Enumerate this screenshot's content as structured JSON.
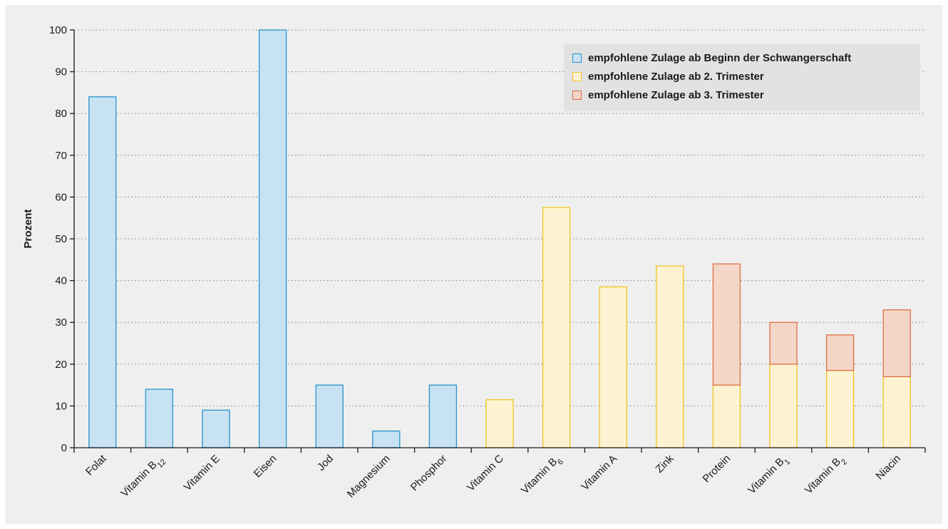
{
  "chart_data": {
    "type": "bar",
    "stacked": true,
    "ylabel": "Prozent",
    "xlabel": "",
    "ylim": [
      0,
      100
    ],
    "yticks": [
      0,
      10,
      20,
      30,
      40,
      50,
      60,
      70,
      80,
      90,
      100
    ],
    "grid": "horizontal dotted",
    "legend_position": "top-right",
    "categories": [
      {
        "label": "Folat"
      },
      {
        "label": "Vitamin B",
        "sub": "12"
      },
      {
        "label": "Vitamin E"
      },
      {
        "label": "Eisen"
      },
      {
        "label": "Jod"
      },
      {
        "label": "Magnesium"
      },
      {
        "label": "Phosphor"
      },
      {
        "label": "Vitamin C"
      },
      {
        "label": "Vitamin B",
        "sub": "6"
      },
      {
        "label": "Vitamin A"
      },
      {
        "label": "Zink"
      },
      {
        "label": "Protein"
      },
      {
        "label": "Vitamin B",
        "sub": "1"
      },
      {
        "label": "Vitamin B",
        "sub": "2"
      },
      {
        "label": "Niacin"
      }
    ],
    "series": [
      {
        "name": "empfohlene Zulage ab Beginn der Schwangerschaft",
        "fill": "#c6e2f3",
        "stroke": "#2a93c9",
        "values": [
          84,
          14,
          9,
          100,
          15,
          4,
          15,
          0,
          0,
          0,
          0,
          0,
          0,
          0,
          0
        ]
      },
      {
        "name": "empfohlene Zulage ab 2. Trimester",
        "fill": "#fdf3d3",
        "stroke": "#f3c423",
        "values": [
          0,
          0,
          0,
          0,
          0,
          0,
          0,
          11.5,
          57.5,
          38.5,
          43.5,
          15,
          20,
          18.5,
          17
        ]
      },
      {
        "name": "empfohlene Zulage ab 3. Trimester",
        "fill": "#f4d6c8",
        "stroke": "#dd6f43",
        "values": [
          0,
          0,
          0,
          0,
          0,
          0,
          0,
          0,
          0,
          0,
          0,
          29,
          10,
          8.5,
          16
        ]
      }
    ]
  },
  "colors": {
    "frame_background": "#efefef",
    "legend_background": "#e2e2e2",
    "axis": "#1a1a1a",
    "grid": "#9a9a9a"
  }
}
